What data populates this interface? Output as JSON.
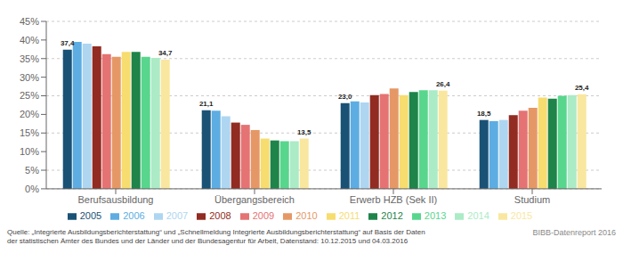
{
  "chart_data": {
    "type": "bar",
    "categories": [
      "Berufsausbildung",
      "Übergangsbereich",
      "Erwerb HZB (Sek II)",
      "Studium"
    ],
    "series": [
      {
        "name": "2005",
        "color": "#1a5276",
        "values": [
          37.4,
          21.1,
          23.0,
          18.5
        ],
        "value_labels": [
          "37,4",
          "21,1",
          "23,0",
          "18,5"
        ]
      },
      {
        "name": "2006",
        "color": "#5dade2",
        "values": [
          39.5,
          21.0,
          23.5,
          18.2
        ]
      },
      {
        "name": "2007",
        "color": "#aed6f1",
        "values": [
          39.0,
          19.5,
          23.2,
          18.5
        ]
      },
      {
        "name": "2008",
        "color": "#922b21",
        "values": [
          38.3,
          17.8,
          25.2,
          19.8
        ]
      },
      {
        "name": "2009",
        "color": "#e57373",
        "values": [
          36.2,
          17.2,
          25.5,
          21.0
        ]
      },
      {
        "name": "2010",
        "color": "#e59866",
        "values": [
          35.5,
          15.8,
          27.0,
          21.8
        ]
      },
      {
        "name": "2011",
        "color": "#f7dc6f",
        "values": [
          36.8,
          13.5,
          25.2,
          24.5
        ]
      },
      {
        "name": "2012",
        "color": "#1e8449",
        "values": [
          36.8,
          13.0,
          26.0,
          24.2
        ]
      },
      {
        "name": "2013",
        "color": "#58d68d",
        "values": [
          35.5,
          12.8,
          26.5,
          25.0
        ]
      },
      {
        "name": "2014",
        "color": "#abebc6",
        "values": [
          35.2,
          12.8,
          26.5,
          25.2
        ]
      },
      {
        "name": "2015",
        "color": "#f9e79f",
        "values": [
          34.7,
          13.5,
          26.4,
          25.4
        ],
        "value_labels": [
          "34,7",
          "13,5",
          "26,4",
          "25,4"
        ]
      }
    ],
    "ylim": [
      0,
      45
    ],
    "yticks": [
      {
        "value": 0,
        "label": "0%"
      },
      {
        "value": 5,
        "label": "5%"
      },
      {
        "value": 10,
        "label": "10%"
      },
      {
        "value": 15,
        "label": "15%"
      },
      {
        "value": 20,
        "label": "20%"
      },
      {
        "value": 25,
        "label": "25%"
      },
      {
        "value": 30,
        "label": "30%"
      },
      {
        "value": 35,
        "label": "35%"
      },
      {
        "value": 40,
        "label": "40%"
      },
      {
        "value": 45,
        "label": "45%"
      }
    ],
    "grid": true,
    "legend": "bottom",
    "annotations": [
      "Quelle: „Integrierte Ausbildungsberichterstattung“ und „Schnellmeldung Integrierte Ausbildungsberichterstattung“ auf Basis der Daten\nder statistischen Ämter des Bundes und der Länder und der Bundesagentur für Arbeit, Datenstand: 10.12.2015 und 04.03.2016",
      "BIBB-Datenreport 2016"
    ]
  }
}
